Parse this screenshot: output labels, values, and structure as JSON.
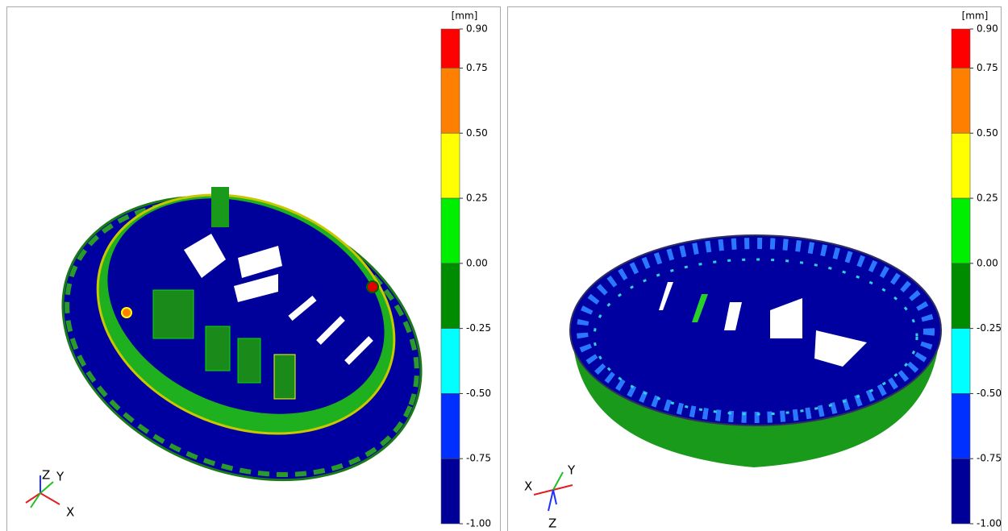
{
  "panels": [
    {
      "scale": {
        "unit": "[mm]",
        "ticks": [
          {
            "value": 0.9,
            "label": "0.90"
          },
          {
            "value": 0.75,
            "label": "0.75"
          },
          {
            "value": 0.5,
            "label": "0.50"
          },
          {
            "value": 0.25,
            "label": "0.25"
          },
          {
            "value": 0,
            "label": "0.00"
          },
          {
            "value": -0.25,
            "label": "-0.25"
          },
          {
            "value": -0.5,
            "label": "-0.50"
          },
          {
            "value": -0.75,
            "label": "-0.75"
          },
          {
            "value": -1,
            "label": "-1.00"
          }
        ],
        "colors": [
          "#ff0000",
          "#ff8000",
          "#ffff00",
          "#00ee00",
          "#008c00",
          "#00ffff",
          "#0030ff",
          "#000099"
        ]
      },
      "triad": [
        "Z",
        "Y",
        "X"
      ]
    },
    {
      "scale": {
        "unit": "[mm]",
        "ticks": [
          {
            "value": 0.9,
            "label": "0.90"
          },
          {
            "value": 0.75,
            "label": "0.75"
          },
          {
            "value": 0.5,
            "label": "0.50"
          },
          {
            "value": 0.25,
            "label": "0.25"
          },
          {
            "value": 0,
            "label": "0.00"
          },
          {
            "value": -0.25,
            "label": "-0.25"
          },
          {
            "value": -0.5,
            "label": "-0.50"
          },
          {
            "value": -0.75,
            "label": "-0.75"
          },
          {
            "value": -1,
            "label": "-1.00"
          }
        ],
        "colors": [
          "#ff0000",
          "#ff8000",
          "#ffff00",
          "#00ee00",
          "#008c00",
          "#00ffff",
          "#0030ff",
          "#000099"
        ]
      },
      "triad": [
        "X",
        "Y",
        "Z"
      ]
    }
  ]
}
